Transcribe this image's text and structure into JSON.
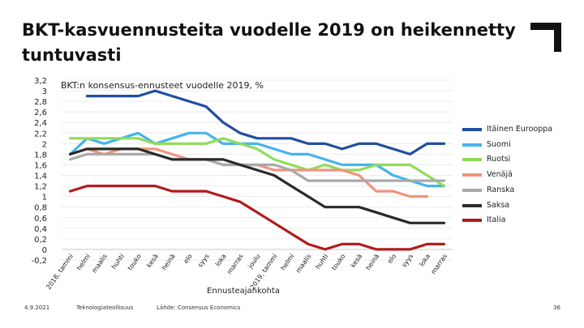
{
  "slide": {
    "title": "BKT-kasvuennusteita vuodelle 2019 on heikennetty tuntuvasti",
    "footer_date": "4.9.2021",
    "footer_org": "Teknologiateollisuus",
    "footer_source": "Lähde: Consensus Economics",
    "page_number": "36"
  },
  "chart_data": {
    "type": "line",
    "title": "BKT:n konsensus-ennusteet vuodelle 2019, %",
    "xlabel": "Ennusteajankohta",
    "ylabel": "",
    "ylim": [
      -0.2,
      3.2
    ],
    "ytick_labels": [
      "3,2",
      "3",
      "2,8",
      "2,6",
      "2,4",
      "2,2",
      "2",
      "1,8",
      "1,6",
      "1,4",
      "1,2",
      "1",
      "0,8",
      "0,6",
      "0,4",
      "0,2",
      "0",
      "-0,2"
    ],
    "categories": [
      "2018, tammi",
      "helmi",
      "maalis",
      "huhti",
      "touko",
      "kesä",
      "heinä",
      "elo",
      "syys",
      "loka",
      "marras",
      "joulu",
      "2019, tammi",
      "helmi",
      "maalis",
      "huhti",
      "touko",
      "kesä",
      "heinä",
      "elo",
      "syys",
      "loka",
      "marras"
    ],
    "legend_position": "right",
    "series": [
      {
        "name": "Itäinen Eurooppa",
        "color": "#1f4fa0",
        "values": [
          null,
          2.9,
          2.9,
          2.9,
          2.9,
          3.0,
          2.9,
          2.8,
          2.7,
          2.4,
          2.2,
          2.1,
          2.1,
          2.1,
          2.0,
          2.0,
          1.9,
          2.0,
          2.0,
          1.9,
          1.8,
          2.0,
          2.0
        ]
      },
      {
        "name": "Suomi",
        "color": "#44b4ec",
        "values": [
          1.8,
          2.1,
          2.0,
          2.1,
          2.2,
          2.0,
          2.1,
          2.2,
          2.2,
          2.0,
          2.0,
          2.0,
          1.9,
          1.8,
          1.8,
          1.7,
          1.6,
          1.6,
          1.6,
          1.4,
          1.3,
          1.2,
          1.2
        ]
      },
      {
        "name": "Ruotsi",
        "color": "#8fdc5c",
        "values": [
          2.1,
          2.1,
          2.1,
          2.1,
          2.1,
          2.0,
          2.0,
          2.0,
          2.0,
          2.1,
          2.0,
          1.9,
          1.7,
          1.6,
          1.5,
          1.6,
          1.5,
          1.5,
          1.6,
          1.6,
          1.6,
          1.4,
          1.2
        ]
      },
      {
        "name": "Venäjä",
        "color": "#f0937b",
        "values": [
          1.8,
          1.9,
          1.8,
          1.9,
          1.9,
          1.9,
          1.8,
          1.7,
          1.7,
          1.6,
          1.6,
          1.6,
          1.5,
          1.5,
          1.5,
          1.5,
          1.5,
          1.4,
          1.1,
          1.1,
          1.0,
          1.0,
          null
        ]
      },
      {
        "name": "Ranska",
        "color": "#a9a9a9",
        "values": [
          1.7,
          1.8,
          1.8,
          1.8,
          1.8,
          1.8,
          1.7,
          1.7,
          1.7,
          1.6,
          1.6,
          1.6,
          1.6,
          1.5,
          1.3,
          1.3,
          1.3,
          1.3,
          1.3,
          1.3,
          1.3,
          1.3,
          1.3
        ]
      },
      {
        "name": "Saksa",
        "color": "#2a2a2a",
        "values": [
          1.8,
          1.9,
          1.9,
          1.9,
          1.9,
          1.8,
          1.7,
          1.7,
          1.7,
          1.7,
          1.6,
          1.5,
          1.4,
          1.2,
          1.0,
          0.8,
          0.8,
          0.8,
          0.7,
          0.6,
          0.5,
          0.5,
          0.5
        ]
      },
      {
        "name": "Italia",
        "color": "#b31b1b",
        "values": [
          1.1,
          1.2,
          1.2,
          1.2,
          1.2,
          1.2,
          1.1,
          1.1,
          1.1,
          1.0,
          0.9,
          0.7,
          0.5,
          0.3,
          0.1,
          0.0,
          0.1,
          0.1,
          0.0,
          0.0,
          0.0,
          0.1,
          0.1
        ]
      }
    ]
  }
}
